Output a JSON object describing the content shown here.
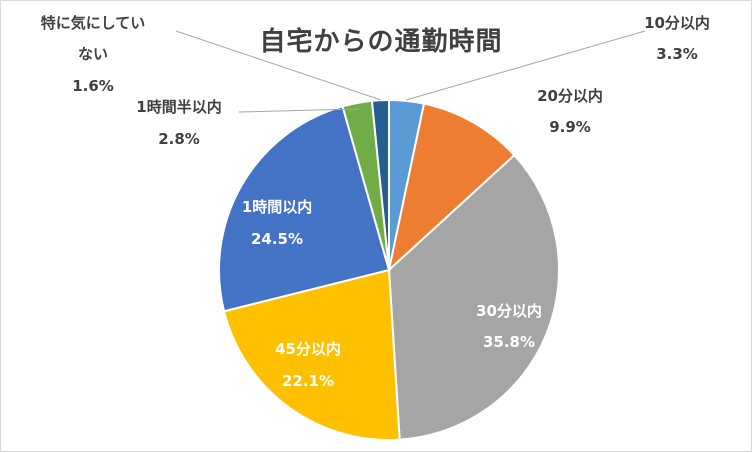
{
  "chart_data": {
    "type": "pie",
    "title": "自宅からの通勤時間",
    "slices": [
      {
        "label": "10分以内",
        "value": 3.3,
        "display": "3.3%",
        "color": "#5b9bd5"
      },
      {
        "label": "20分以内",
        "value": 9.9,
        "display": "9.9%",
        "color": "#ed7d31"
      },
      {
        "label": "30分以内",
        "value": 35.8,
        "display": "35.8%",
        "color": "#a5a5a5"
      },
      {
        "label": "45分以内",
        "value": 22.1,
        "display": "22.1%",
        "color": "#ffc000"
      },
      {
        "label": "1時間以内",
        "value": 24.5,
        "display": "24.5%",
        "color": "#4472c4"
      },
      {
        "label": "1時間半以内",
        "value": 2.8,
        "display": "2.8%",
        "color": "#70ad47"
      },
      {
        "label": "特に気にしていない",
        "value": 1.6,
        "display": "1.6%",
        "color": "#255e91"
      }
    ],
    "legend": "none"
  }
}
